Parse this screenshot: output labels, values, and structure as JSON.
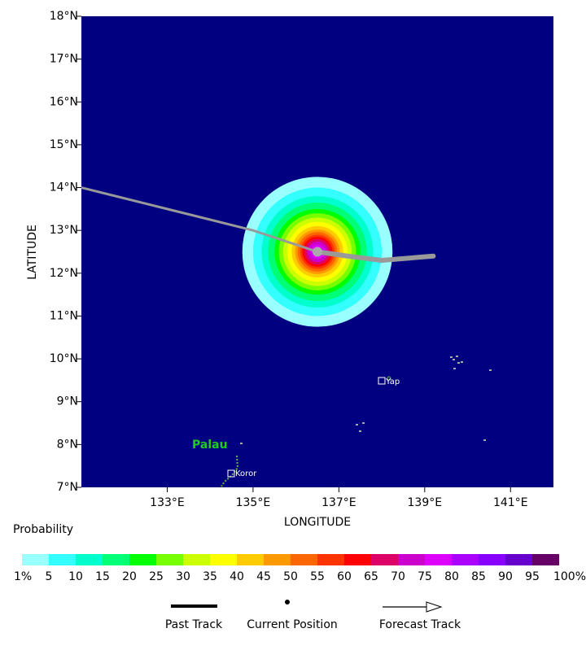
{
  "chart_data": {
    "type": "probability-map",
    "xlabel": "LONGITUDE",
    "ylabel": "LATITUDE",
    "xlim": [
      131,
      142
    ],
    "ylim": [
      7,
      18
    ],
    "xticks": [
      {
        "value": 133,
        "label": "133°E"
      },
      {
        "value": 135,
        "label": "135°E"
      },
      {
        "value": 137,
        "label": "137°E"
      },
      {
        "value": 139,
        "label": "139°E"
      },
      {
        "value": 141,
        "label": "141°E"
      }
    ],
    "yticks": [
      {
        "value": 7,
        "label": "7°N"
      },
      {
        "value": 8,
        "label": "8°N"
      },
      {
        "value": 9,
        "label": "9°N"
      },
      {
        "value": 10,
        "label": "10°N"
      },
      {
        "value": 11,
        "label": "11°N"
      },
      {
        "value": 12,
        "label": "12°N"
      },
      {
        "value": 13,
        "label": "13°N"
      },
      {
        "value": 14,
        "label": "14°N"
      },
      {
        "value": 15,
        "label": "15°N"
      },
      {
        "value": 16,
        "label": "16°N"
      },
      {
        "value": 17,
        "label": "17°N"
      },
      {
        "value": 18,
        "label": "18°N"
      }
    ],
    "background": "#000080",
    "probability_field": {
      "center_lon": 136.5,
      "center_lat": 12.5,
      "radii": [
        1.75,
        1.5,
        1.3,
        1.15,
        1.0,
        0.9,
        0.8,
        0.7,
        0.6,
        0.52,
        0.46,
        0.4,
        0.35,
        0.3,
        0.24,
        0.17
      ]
    },
    "past_track": {
      "name": "Past Track",
      "color": "#999999",
      "x": [
        131,
        133,
        135,
        136.5
      ],
      "y": [
        14,
        13.5,
        13,
        12.5
      ]
    },
    "current_position": {
      "name": "Current Position",
      "lon": 136.5,
      "lat": 12.5,
      "color": "#aaaaaa"
    },
    "forecast_track": {
      "name": "Forecast Track",
      "color": "#999999",
      "x": [
        136.5,
        137.2,
        138,
        139.2
      ],
      "y": [
        12.5,
        12.4,
        12.3,
        12.4
      ]
    },
    "places": [
      "Palau",
      "Yap",
      "Koror"
    ],
    "colorbar": {
      "title": "Probability",
      "ticks": [
        {
          "value": 1,
          "label": "1%"
        },
        5,
        10,
        15,
        20,
        25,
        30,
        35,
        40,
        45,
        50,
        55,
        60,
        65,
        70,
        75,
        80,
        85,
        90,
        95,
        {
          "value": 100,
          "label": "100%"
        }
      ],
      "colors": [
        "#99ffff",
        "#33ffff",
        "#00ffcc",
        "#00ff77",
        "#00ff00",
        "#77ff00",
        "#ccff00",
        "#ffff00",
        "#ffcc00",
        "#ff9900",
        "#ff6600",
        "#ff3300",
        "#ff0000",
        "#dd0066",
        "#cc00cc",
        "#dd00ff",
        "#aa00ff",
        "#8800ff",
        "#6600cc",
        "#660066"
      ]
    }
  }
}
